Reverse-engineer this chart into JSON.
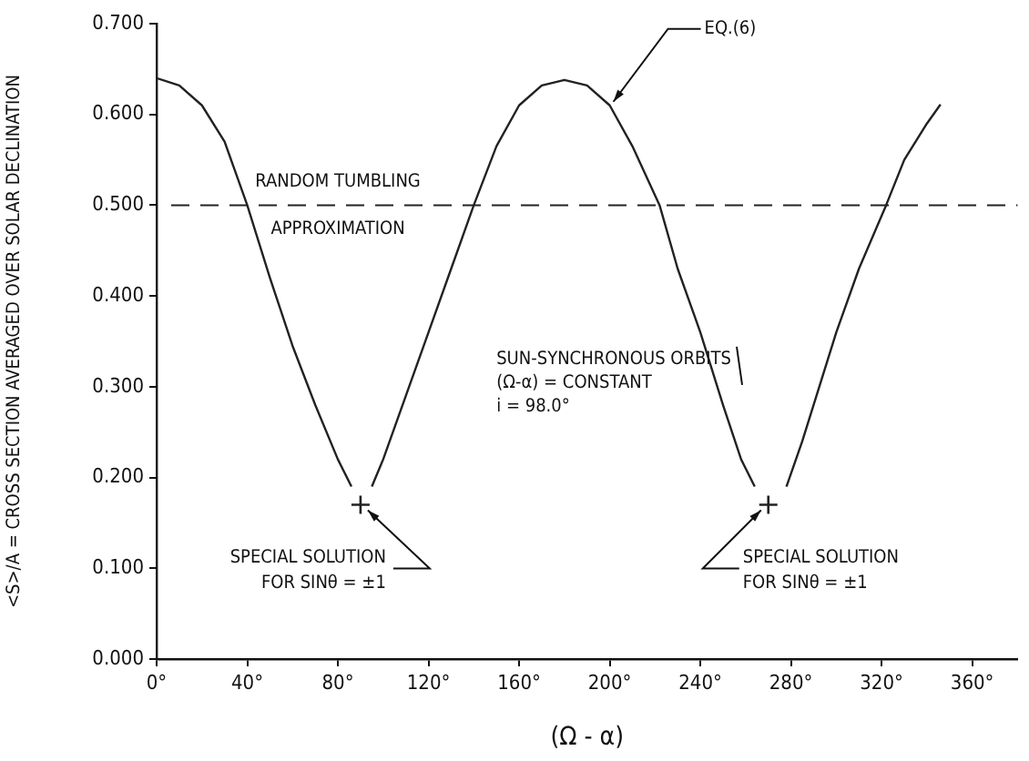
{
  "chart_data": {
    "type": "line",
    "xlabel": "(Ω - α)",
    "ylabel": "<S>/A = CROSS SECTION AVERAGED OVER SOLAR DECLINATION",
    "x": [
      0,
      10,
      20,
      30,
      40,
      50,
      60,
      70,
      80,
      86,
      90,
      95,
      100,
      110,
      120,
      130,
      140,
      150,
      160,
      170,
      180,
      190,
      200,
      210,
      222,
      230,
      240,
      250,
      258,
      264,
      270,
      278,
      285,
      300,
      310,
      322,
      330,
      340,
      346
    ],
    "series": [
      {
        "color": "#222222",
        "line_style": "solid",
        "marker": "none",
        "values": [
          0.64,
          0.632,
          0.61,
          0.57,
          0.5,
          0.42,
          0.345,
          0.28,
          0.22,
          0.19,
          null,
          0.19,
          0.22,
          0.29,
          0.36,
          0.43,
          0.5,
          0.565,
          0.61,
          0.632,
          0.638,
          0.632,
          0.61,
          0.565,
          0.5,
          0.43,
          0.36,
          0.28,
          0.22,
          0.19,
          null,
          0.19,
          0.24,
          0.36,
          0.43,
          0.5,
          0.55,
          0.59,
          0.611
        ]
      },
      {
        "type": "scatter",
        "color": "#222222",
        "marker": "cross",
        "x": [
          90,
          270
        ],
        "values": [
          0.17,
          0.17
        ]
      }
    ],
    "xlim": [
      0,
      380
    ],
    "ylim": [
      0,
      0.7
    ],
    "xticks": [
      {
        "value": 0,
        "label": "0°"
      },
      {
        "value": 40,
        "label": "40°"
      },
      {
        "value": 80,
        "label": "80°"
      },
      {
        "value": 120,
        "label": "120°"
      },
      {
        "value": 160,
        "label": "160°"
      },
      {
        "value": 200,
        "label": "200°"
      },
      {
        "value": 240,
        "label": "240°"
      },
      {
        "value": 280,
        "label": "280°"
      },
      {
        "value": 320,
        "label": "320°"
      },
      {
        "value": 360,
        "label": "360°"
      }
    ],
    "yticks": [
      {
        "value": 0,
        "label": "0.000"
      },
      {
        "value": 0.1,
        "label": "0.100"
      },
      {
        "value": 0.2,
        "label": "0.200"
      },
      {
        "value": 0.3,
        "label": "0.300"
      },
      {
        "value": 0.4,
        "label": "0.400"
      },
      {
        "value": 0.5,
        "label": "0.500"
      },
      {
        "value": 0.6,
        "label": "0.600"
      },
      {
        "value": 0.7,
        "label": "0.700"
      }
    ],
    "ref_lines": [
      {
        "axis": "y",
        "value": 0.5,
        "label": "RANDOM TUMBLING\nAPPROXIMATION",
        "color": "#222222",
        "line_style": "dashed"
      }
    ],
    "annotations": [
      {
        "text": "EQ.(6)",
        "x": 200,
        "y": 0.61
      },
      "SUN-SYNCHRONOUS ORBITS\n(Ω-α) = CONSTANT\ni = 98.0°",
      {
        "text": "SPECIAL SOLUTION\nFOR SINθ = ±1",
        "x": 90,
        "y": 0.17
      },
      {
        "text": "SPECIAL SOLUTION\nFOR SINθ = ±1",
        "x": 270,
        "y": 0.17
      }
    ],
    "grid": false,
    "legend": false
  }
}
